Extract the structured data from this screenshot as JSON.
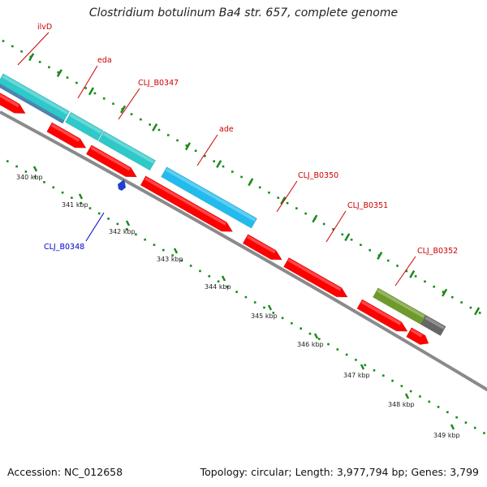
{
  "title": "Clostridium botulinum Ba4 str. 657, complete genome",
  "footer": {
    "accession": "Accession: NC_012658",
    "summary": "Topology: circular; Length: 3,977,794 bp; Genes: 3,799"
  },
  "colors": {
    "backbone": "#8a8a8a",
    "dots": "#1a8a1a",
    "red": "#ff0000",
    "teal": "#2ec9c9",
    "lightblue": "#22bbee",
    "olive": "#6e9a2a",
    "gray": "#666666",
    "steel": "#4a7fb0",
    "label_red": "#cc0000",
    "label_blue": "#0000cc",
    "marker_blue": "#1f3fd0"
  },
  "ticks": [
    {
      "label": "340 kbp"
    },
    {
      "label": "341 kbp"
    },
    {
      "label": "342 kbp"
    },
    {
      "label": "343 kbp"
    },
    {
      "label": "344 kbp"
    },
    {
      "label": "345 kbp"
    },
    {
      "label": "346 kbp"
    },
    {
      "label": "347 kbp"
    },
    {
      "label": "348 kbp"
    },
    {
      "label": "349 kbp"
    }
  ],
  "gene_labels": [
    {
      "text": "ilvD",
      "color": "label_red"
    },
    {
      "text": "eda",
      "color": "label_red"
    },
    {
      "text": "CLJ_B0347",
      "color": "label_red"
    },
    {
      "text": "ade",
      "color": "label_red"
    },
    {
      "text": "CLJ_B0350",
      "color": "label_red"
    },
    {
      "text": "CLJ_B0351",
      "color": "label_red"
    },
    {
      "text": "CLJ_B0352",
      "color": "label_red"
    },
    {
      "text": "CLJ_B0348",
      "color": "label_blue"
    }
  ]
}
